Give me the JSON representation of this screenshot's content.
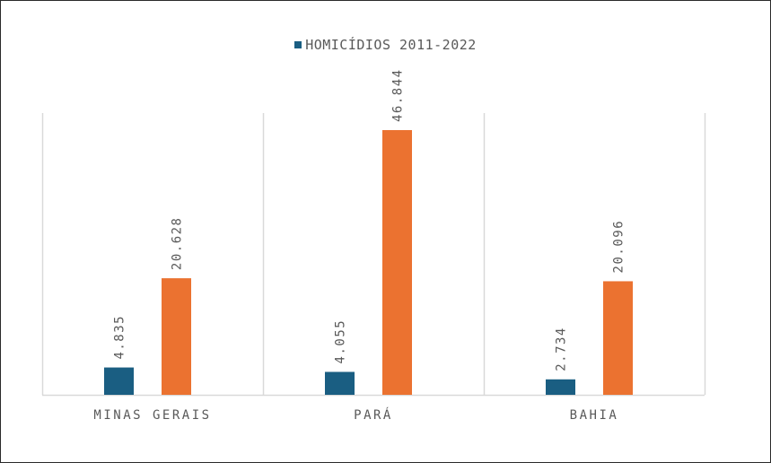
{
  "chart_data": {
    "type": "bar",
    "categories": [
      "MINAS GERAIS",
      "PARÁ",
      "BAHIA"
    ],
    "series": [
      {
        "name": "HOMICÍDIOS 2011-2022",
        "values": [
          4835,
          4055,
          2734
        ],
        "labels": [
          "4.835",
          "4.055",
          "2.734"
        ],
        "color": "#1a5e82"
      },
      {
        "values": [
          20628,
          46844,
          20096
        ],
        "labels": [
          "20.628",
          "46.844",
          "20.096"
        ],
        "color": "#eb7230"
      }
    ],
    "ylim": [
      0,
      50000
    ],
    "grid": "vertical category separators",
    "legend_position": "top"
  }
}
